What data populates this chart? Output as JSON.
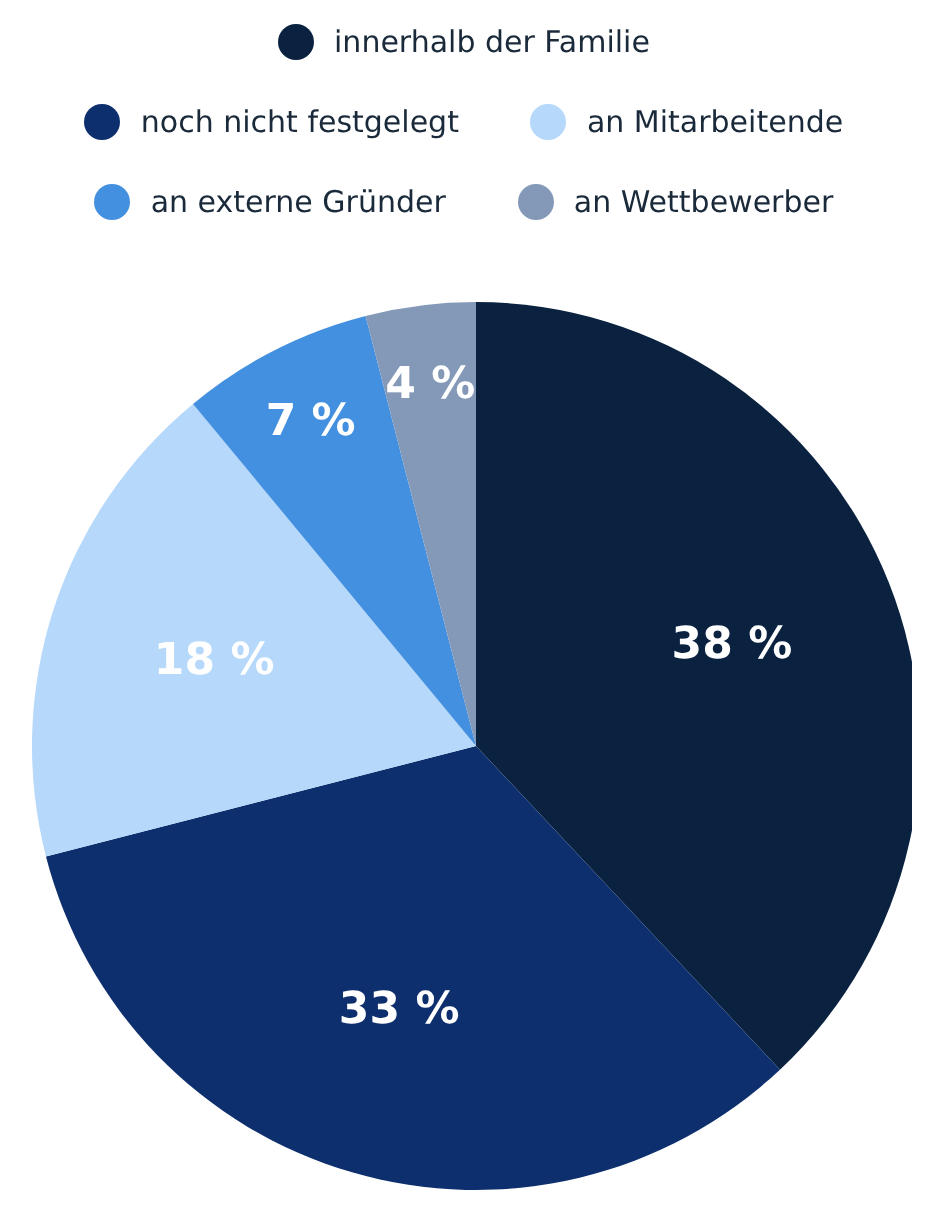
{
  "chart_data": {
    "type": "pie",
    "categories": [
      "innerhalb der Familie",
      "noch nicht festgelegt",
      "an Mitarbeitende",
      "an externe Gründer",
      "an Wettbewerber"
    ],
    "values": [
      38,
      33,
      18,
      7,
      4
    ],
    "colors": [
      "#0a2240",
      "#0d2f6e",
      "#b5d8fb",
      "#4490e0",
      "#8499b8"
    ],
    "value_labels": [
      "38 %",
      "33 %",
      "18 %",
      "7 %",
      "4 %"
    ],
    "legend": "top"
  }
}
